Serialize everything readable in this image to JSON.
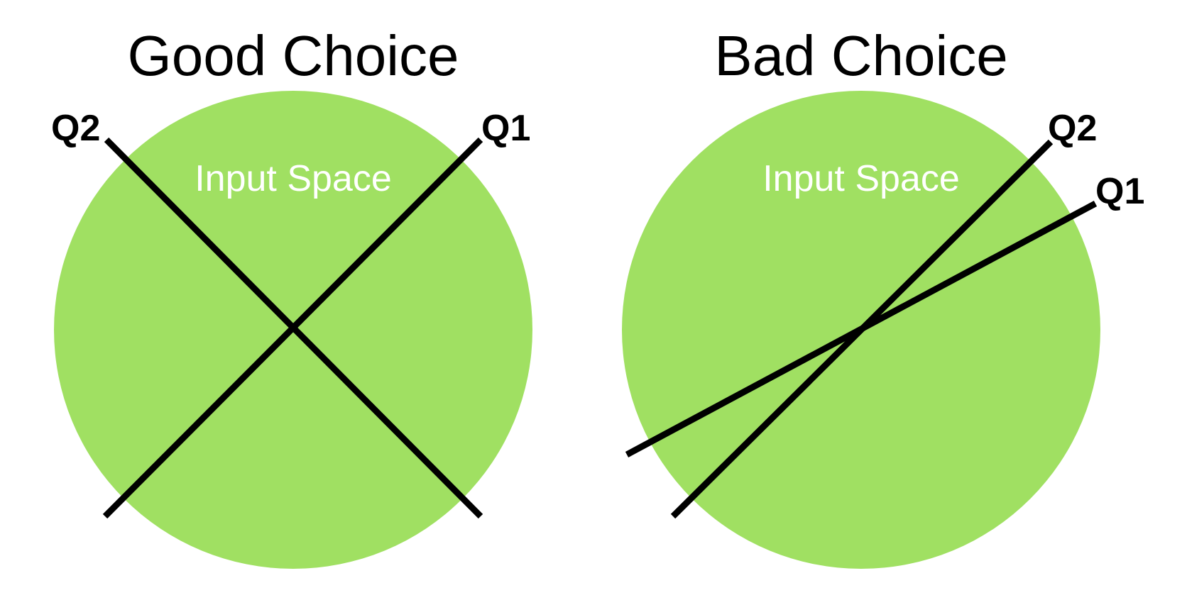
{
  "colors": {
    "input_space": "#a0e062",
    "line": "#000000",
    "background": "#ffffff",
    "space_label": "#ffffff"
  },
  "panels": [
    {
      "title": "Good Choice",
      "space_label": "Input Space",
      "lines": [
        {
          "label": "Q1"
        },
        {
          "label": "Q2"
        }
      ]
    },
    {
      "title": "Bad Choice",
      "space_label": "Input Space",
      "lines": [
        {
          "label": "Q2"
        },
        {
          "label": "Q1"
        }
      ]
    }
  ]
}
